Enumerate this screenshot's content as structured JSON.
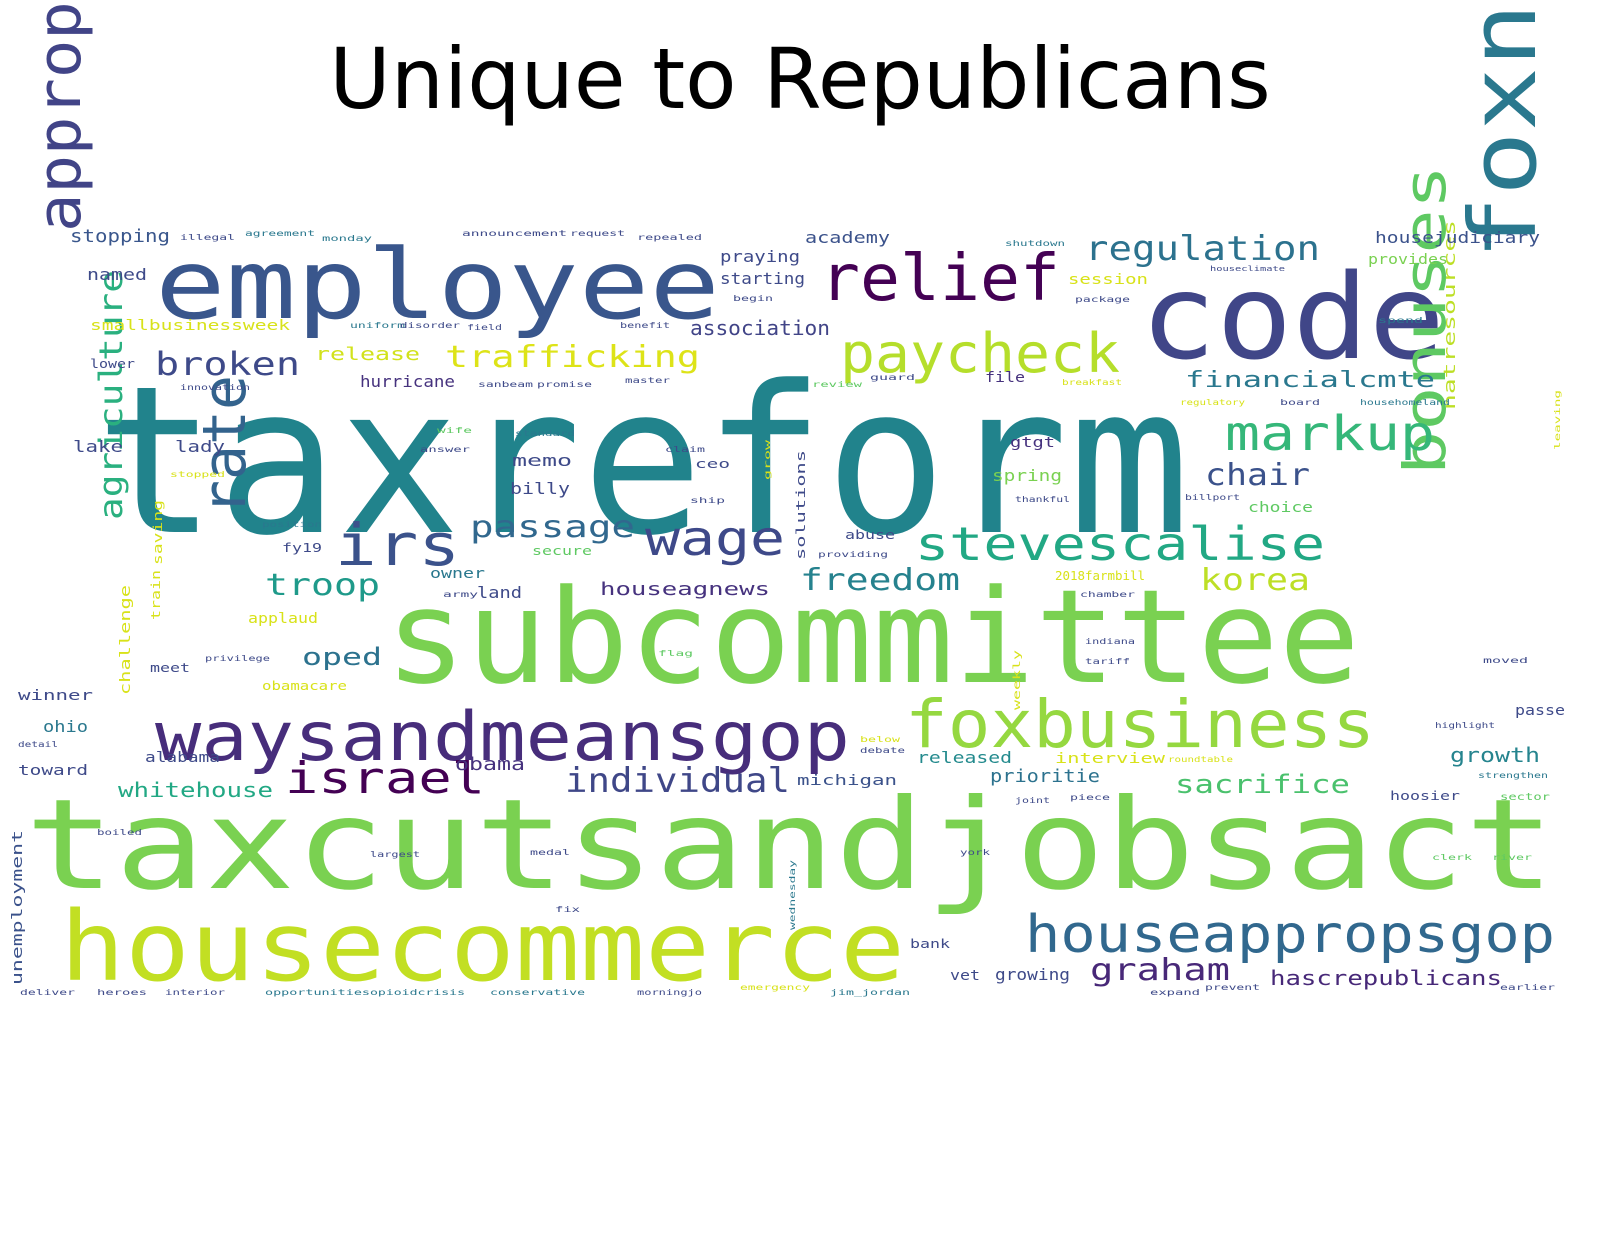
{
  "chart_data": {
    "type": "wordcloud",
    "title": "Unique to Republicans",
    "colormap": "viridis",
    "background": "#ffffff",
    "words": [
      {
        "text": "taxreform",
        "weight": 100,
        "color": "#21838c"
      },
      {
        "text": "taxcutsandjobsact",
        "weight": 85,
        "color": "#7ad151"
      },
      {
        "text": "subcommittee",
        "weight": 80,
        "color": "#7ad151"
      },
      {
        "text": "housecommerce",
        "weight": 60,
        "color": "#c2df23"
      },
      {
        "text": "employee",
        "weight": 60,
        "color": "#39568c"
      },
      {
        "text": "code",
        "weight": 60,
        "color": "#404688"
      },
      {
        "text": "foxnews",
        "weight": 55,
        "color": "#2a788e"
      },
      {
        "text": "waysandmeansgop",
        "weight": 42,
        "color": "#472d7b"
      },
      {
        "text": "foxbusiness",
        "weight": 42,
        "color": "#95d840"
      },
      {
        "text": "relief",
        "weight": 40,
        "color": "#440154"
      },
      {
        "text": "appropriation",
        "weight": 40,
        "color": "#414487"
      },
      {
        "text": "bonuses",
        "weight": 38,
        "color": "#5ec962"
      },
      {
        "text": "rate",
        "weight": 36,
        "color": "#33638d"
      },
      {
        "text": "irs",
        "weight": 34,
        "color": "#3b528b"
      },
      {
        "text": "paycheck",
        "weight": 34,
        "color": "#b5de2b"
      },
      {
        "text": "houseappropsgop",
        "weight": 32,
        "color": "#31688e"
      },
      {
        "text": "markup",
        "weight": 30,
        "color": "#35b779"
      },
      {
        "text": "stevescalise",
        "weight": 29,
        "color": "#22a884"
      },
      {
        "text": "wage",
        "weight": 29,
        "color": "#3e4989"
      },
      {
        "text": "israel",
        "weight": 27,
        "color": "#440154"
      },
      {
        "text": "agriculture",
        "weight": 22,
        "color": "#2ab07f"
      },
      {
        "text": "regulation",
        "weight": 22,
        "color": "#2c728e"
      },
      {
        "text": "trafficking",
        "weight": 20,
        "color": "#dde318"
      },
      {
        "text": "broken",
        "weight": 20,
        "color": "#3e4a89"
      },
      {
        "text": "individual",
        "weight": 20,
        "color": "#3f4788"
      },
      {
        "text": "chair",
        "weight": 20,
        "color": "#3b528b"
      },
      {
        "text": "graham",
        "weight": 20,
        "color": "#482878"
      },
      {
        "text": "passage",
        "weight": 18,
        "color": "#31688e"
      },
      {
        "text": "troop",
        "weight": 18,
        "color": "#1f9a8a"
      },
      {
        "text": "freedom",
        "weight": 18,
        "color": "#26828e"
      },
      {
        "text": "korea",
        "weight": 18,
        "color": "#bddf26"
      },
      {
        "text": "sacrifice",
        "weight": 16,
        "color": "#4ac16d"
      },
      {
        "text": "financialcmte",
        "weight": 14,
        "color": "#2a788e"
      },
      {
        "text": "association",
        "weight": 12,
        "color": "#414487"
      },
      {
        "text": "release",
        "weight": 11,
        "color": "#d2e21b"
      },
      {
        "text": "hurricane",
        "weight": 10,
        "color": "#46327e"
      },
      {
        "text": "whitehouse",
        "weight": 12,
        "color": "#22a884"
      },
      {
        "text": "oped",
        "weight": 14,
        "color": "#2c728e"
      },
      {
        "text": "obama",
        "weight": 11,
        "color": "#46327e"
      },
      {
        "text": "hascrepublicans",
        "weight": 11,
        "color": "#472878"
      },
      {
        "text": "growth",
        "weight": 11,
        "color": "#25848e"
      },
      {
        "text": "natresources",
        "weight": 10,
        "color": "#bddf26"
      },
      {
        "text": "houseagnews",
        "weight": 10,
        "color": "#46327e"
      },
      {
        "text": "stopping",
        "weight": 10,
        "color": "#39568c"
      },
      {
        "text": "housejudiciary",
        "weight": 9,
        "color": "#3b528b"
      },
      {
        "text": "academy",
        "weight": 9,
        "color": "#3b528b"
      },
      {
        "text": "praying",
        "weight": 9,
        "color": "#3e4a89"
      },
      {
        "text": "starting",
        "weight": 9,
        "color": "#3e4a89"
      },
      {
        "text": "named",
        "weight": 9,
        "color": "#3e4a89"
      },
      {
        "text": "smallbusinessweek",
        "weight": 8,
        "color": "#d8e219"
      },
      {
        "text": "unemployment",
        "weight": 8,
        "color": "#3b528b"
      },
      {
        "text": "prioritie",
        "weight": 9,
        "color": "#2c728e"
      },
      {
        "text": "released",
        "weight": 9,
        "color": "#238a8d"
      },
      {
        "text": "interview",
        "weight": 8,
        "color": "#d8e219"
      },
      {
        "text": "michigan",
        "weight": 8,
        "color": "#3b528b"
      },
      {
        "text": "billy",
        "weight": 8,
        "color": "#3e4a89"
      },
      {
        "text": "memo",
        "weight": 8,
        "color": "#3e4a89"
      },
      {
        "text": "lake",
        "weight": 8,
        "color": "#3e4a89"
      },
      {
        "text": "lady",
        "weight": 8,
        "color": "#3e4a89"
      },
      {
        "text": "alabama",
        "weight": 8,
        "color": "#3e4a89"
      },
      {
        "text": "toward",
        "weight": 8,
        "color": "#3e4a89"
      },
      {
        "text": "ohio",
        "weight": 9,
        "color": "#2a788e"
      },
      {
        "text": "winner",
        "weight": 8,
        "color": "#3e4a89"
      },
      {
        "text": "applaud",
        "weight": 8,
        "color": "#d8e219"
      },
      {
        "text": "obamacare",
        "weight": 7,
        "color": "#d8e219"
      },
      {
        "text": "challenge",
        "weight": 8,
        "color": "#d8e219"
      },
      {
        "text": "owner",
        "weight": 8,
        "color": "#2a788e"
      },
      {
        "text": "land",
        "weight": 8,
        "color": "#3e4a89"
      },
      {
        "text": "secure",
        "weight": 7,
        "color": "#5ec962"
      },
      {
        "text": "choice",
        "weight": 8,
        "color": "#5ec962"
      },
      {
        "text": "spring",
        "weight": 8,
        "color": "#7ad151"
      },
      {
        "text": "gtgt",
        "weight": 8,
        "color": "#46327e"
      },
      {
        "text": "file",
        "weight": 8,
        "color": "#46327e"
      },
      {
        "text": "provides",
        "weight": 7,
        "color": "#7ad151"
      },
      {
        "text": "session",
        "weight": 7,
        "color": "#d8e219"
      },
      {
        "text": "growing",
        "weight": 9,
        "color": "#3e4a89"
      },
      {
        "text": "vet",
        "weight": 8,
        "color": "#3e4a89"
      },
      {
        "text": "hoosier",
        "weight": 7,
        "color": "#3e4a89"
      },
      {
        "text": "passe",
        "weight": 7,
        "color": "#3e4a89"
      },
      {
        "text": "fy19",
        "weight": 7,
        "color": "#3e4a89"
      },
      {
        "text": "saving",
        "weight": 7,
        "color": "#d8e219"
      },
      {
        "text": "train",
        "weight": 7,
        "color": "#d8e219"
      },
      {
        "text": "solutions",
        "weight": 6,
        "color": "#3e4a89"
      },
      {
        "text": "2018farmbill",
        "weight": 6,
        "color": "#d8e219"
      },
      {
        "text": "sector",
        "weight": 6,
        "color": "#5ec962"
      },
      {
        "text": "lower",
        "weight": 6,
        "color": "#3e4a89"
      },
      {
        "text": "bank",
        "weight": 6,
        "color": "#3e4a89"
      },
      {
        "text": "abuse",
        "weight": 6,
        "color": "#3e4a89"
      },
      {
        "text": "weekly",
        "weight": 6,
        "color": "#d8e219"
      },
      {
        "text": "deliver",
        "weight": 5,
        "color": "#3e4a89"
      },
      {
        "text": "heroes",
        "weight": 5,
        "color": "#3e4a89"
      },
      {
        "text": "interior",
        "weight": 5,
        "color": "#3e4a89"
      },
      {
        "text": "opportunities",
        "weight": 5,
        "color": "#2a788e"
      },
      {
        "text": "opioidcrisis",
        "weight": 5,
        "color": "#2a788e"
      },
      {
        "text": "conservative",
        "weight": 5,
        "color": "#2a788e"
      },
      {
        "text": "morningjo",
        "weight": 5,
        "color": "#3e4a89"
      },
      {
        "text": "emergency",
        "weight": 5,
        "color": "#d8e219"
      },
      {
        "text": "jim_jordan",
        "weight": 5,
        "color": "#2a788e"
      },
      {
        "text": "expand",
        "weight": 5,
        "color": "#3e4a89"
      },
      {
        "text": "prevent",
        "weight": 5,
        "color": "#3e4a89"
      },
      {
        "text": "earlier",
        "weight": 5,
        "color": "#3e4a89"
      },
      {
        "text": "illegal",
        "weight": 5,
        "color": "#3e4a89"
      },
      {
        "text": "agreement",
        "weight": 5,
        "color": "#2a788e"
      },
      {
        "text": "monday",
        "weight": 5,
        "color": "#2a788e"
      },
      {
        "text": "announcement",
        "weight": 5,
        "color": "#3e4a89"
      },
      {
        "text": "request",
        "weight": 5,
        "color": "#3e4a89"
      },
      {
        "text": "repealed",
        "weight": 5,
        "color": "#3e4a89"
      },
      {
        "text": "shutdown",
        "weight": 5,
        "color": "#2a788e"
      },
      {
        "text": "houseclimate",
        "weight": 5,
        "color": "#3e4a89"
      },
      {
        "text": "begin",
        "weight": 5,
        "color": "#3e4a89"
      },
      {
        "text": "package",
        "weight": 5,
        "color": "#3e4a89"
      },
      {
        "text": "uniform",
        "weight": 5,
        "color": "#2a788e"
      },
      {
        "text": "disorder",
        "weight": 5,
        "color": "#3e4a89"
      },
      {
        "text": "field",
        "weight": 5,
        "color": "#3e4a89"
      },
      {
        "text": "benefit",
        "weight": 5,
        "color": "#3e4a89"
      },
      {
        "text": "spend",
        "weight": 5,
        "color": "#2a788e"
      },
      {
        "text": "review",
        "weight": 5,
        "color": "#5ec962"
      },
      {
        "text": "guard",
        "weight": 5,
        "color": "#3e4a89"
      },
      {
        "text": "breakfast",
        "weight": 5,
        "color": "#d8e219"
      },
      {
        "text": "regulatory",
        "weight": 5,
        "color": "#d8e219"
      },
      {
        "text": "board",
        "weight": 5,
        "color": "#3e4a89"
      },
      {
        "text": "househomeland",
        "weight": 5,
        "color": "#2a788e"
      },
      {
        "text": "sanbeam",
        "weight": 5,
        "color": "#3e4a89"
      },
      {
        "text": "promise",
        "weight": 5,
        "color": "#3e4a89"
      },
      {
        "text": "master",
        "weight": 5,
        "color": "#3e4a89"
      },
      {
        "text": "innovation",
        "weight": 5,
        "color": "#3e4a89"
      },
      {
        "text": "wife",
        "weight": 5,
        "color": "#5ec962"
      },
      {
        "text": "answer",
        "weight": 5,
        "color": "#3e4a89"
      },
      {
        "text": "standard",
        "weight": 5,
        "color": "#2a788e"
      },
      {
        "text": "claim",
        "weight": 5,
        "color": "#3e4a89"
      },
      {
        "text": "stopped",
        "weight": 5,
        "color": "#d8e219"
      },
      {
        "text": "ship",
        "weight": 5,
        "color": "#3e4a89"
      },
      {
        "text": "thankful",
        "weight": 5,
        "color": "#3e4a89"
      },
      {
        "text": "billport",
        "weight": 5,
        "color": "#3e4a89"
      },
      {
        "text": "position",
        "weight": 5,
        "color": "#2a788e"
      },
      {
        "text": "providing",
        "weight": 5,
        "color": "#3e4a89"
      },
      {
        "text": "army",
        "weight": 5,
        "color": "#3e4a89"
      },
      {
        "text": "chamber",
        "weight": 5,
        "color": "#3e4a89"
      },
      {
        "text": "indiana",
        "weight": 5,
        "color": "#3e4a89"
      },
      {
        "text": "tariff",
        "weight": 5,
        "color": "#3e4a89"
      },
      {
        "text": "flag",
        "weight": 5,
        "color": "#5ec962"
      },
      {
        "text": "privilege",
        "weight": 5,
        "color": "#3e4a89"
      },
      {
        "text": "meet",
        "weight": 5,
        "color": "#3e4a89"
      },
      {
        "text": "highlight",
        "weight": 5,
        "color": "#3e4a89"
      },
      {
        "text": "moved",
        "weight": 5,
        "color": "#3e4a89"
      },
      {
        "text": "strengthen",
        "weight": 5,
        "color": "#2a788e"
      },
      {
        "text": "debate",
        "weight": 5,
        "color": "#3e4a89"
      },
      {
        "text": "below",
        "weight": 5,
        "color": "#d8e219"
      },
      {
        "text": "roundtable",
        "weight": 5,
        "color": "#d8e219"
      },
      {
        "text": "joint",
        "weight": 5,
        "color": "#3e4a89"
      },
      {
        "text": "piece",
        "weight": 5,
        "color": "#3e4a89"
      },
      {
        "text": "largest",
        "weight": 5,
        "color": "#3e4a89"
      },
      {
        "text": "medal",
        "weight": 5,
        "color": "#3e4a89"
      },
      {
        "text": "york",
        "weight": 5,
        "color": "#3e4a89"
      },
      {
        "text": "wednesday",
        "weight": 5,
        "color": "#2a788e"
      },
      {
        "text": "fix",
        "weight": 5,
        "color": "#3e4a89"
      },
      {
        "text": "clerk",
        "weight": 5,
        "color": "#5ec962"
      },
      {
        "text": "river",
        "weight": 5,
        "color": "#5ec962"
      },
      {
        "text": "boiled",
        "weight": 5,
        "color": "#3e4a89"
      },
      {
        "text": "detail",
        "weight": 5,
        "color": "#3e4a89"
      },
      {
        "text": "grow",
        "weight": 5,
        "color": "#d8e219"
      },
      {
        "text": "ceo",
        "weight": 5,
        "color": "#3e4a89"
      },
      {
        "text": "leaving",
        "weight": 5,
        "color": "#d8e219"
      }
    ]
  }
}
